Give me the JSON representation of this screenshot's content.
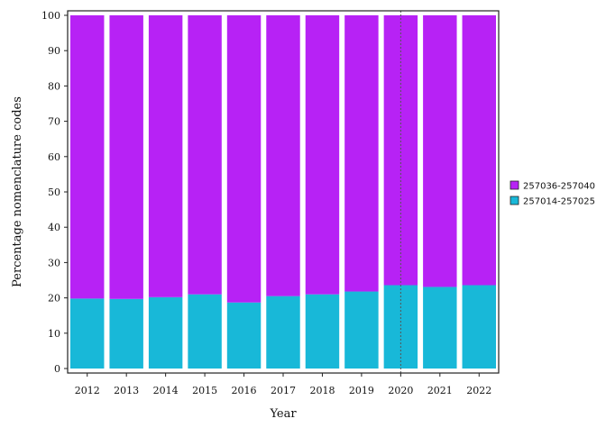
{
  "chart_data": {
    "type": "bar",
    "stacked": true,
    "categories": [
      "2012",
      "2013",
      "2014",
      "2015",
      "2016",
      "2017",
      "2018",
      "2019",
      "2020",
      "2021",
      "2022"
    ],
    "series": [
      {
        "name": "257014-257025",
        "color": "#18b8d8",
        "values": [
          19.8,
          19.7,
          20.2,
          21.0,
          18.7,
          20.5,
          21.0,
          21.8,
          23.6,
          23.1,
          23.6
        ]
      },
      {
        "name": "257036-257040",
        "color": "#b722f5",
        "values": [
          80.2,
          80.3,
          79.8,
          79.0,
          81.3,
          79.5,
          79.0,
          78.2,
          76.4,
          76.9,
          76.4
        ]
      }
    ],
    "title": "",
    "xlabel": "Year",
    "ylabel": "Percentage nomenclature codes",
    "ylim": [
      0,
      100
    ],
    "yticks": [
      0,
      10,
      20,
      30,
      40,
      50,
      60,
      70,
      80,
      90,
      100
    ],
    "grid": false,
    "legend_position": "right",
    "legend_order": [
      "257036-257040",
      "257014-257025"
    ],
    "vertical_marker": {
      "at": "2020",
      "style": "dotted",
      "color": "#555555"
    }
  }
}
